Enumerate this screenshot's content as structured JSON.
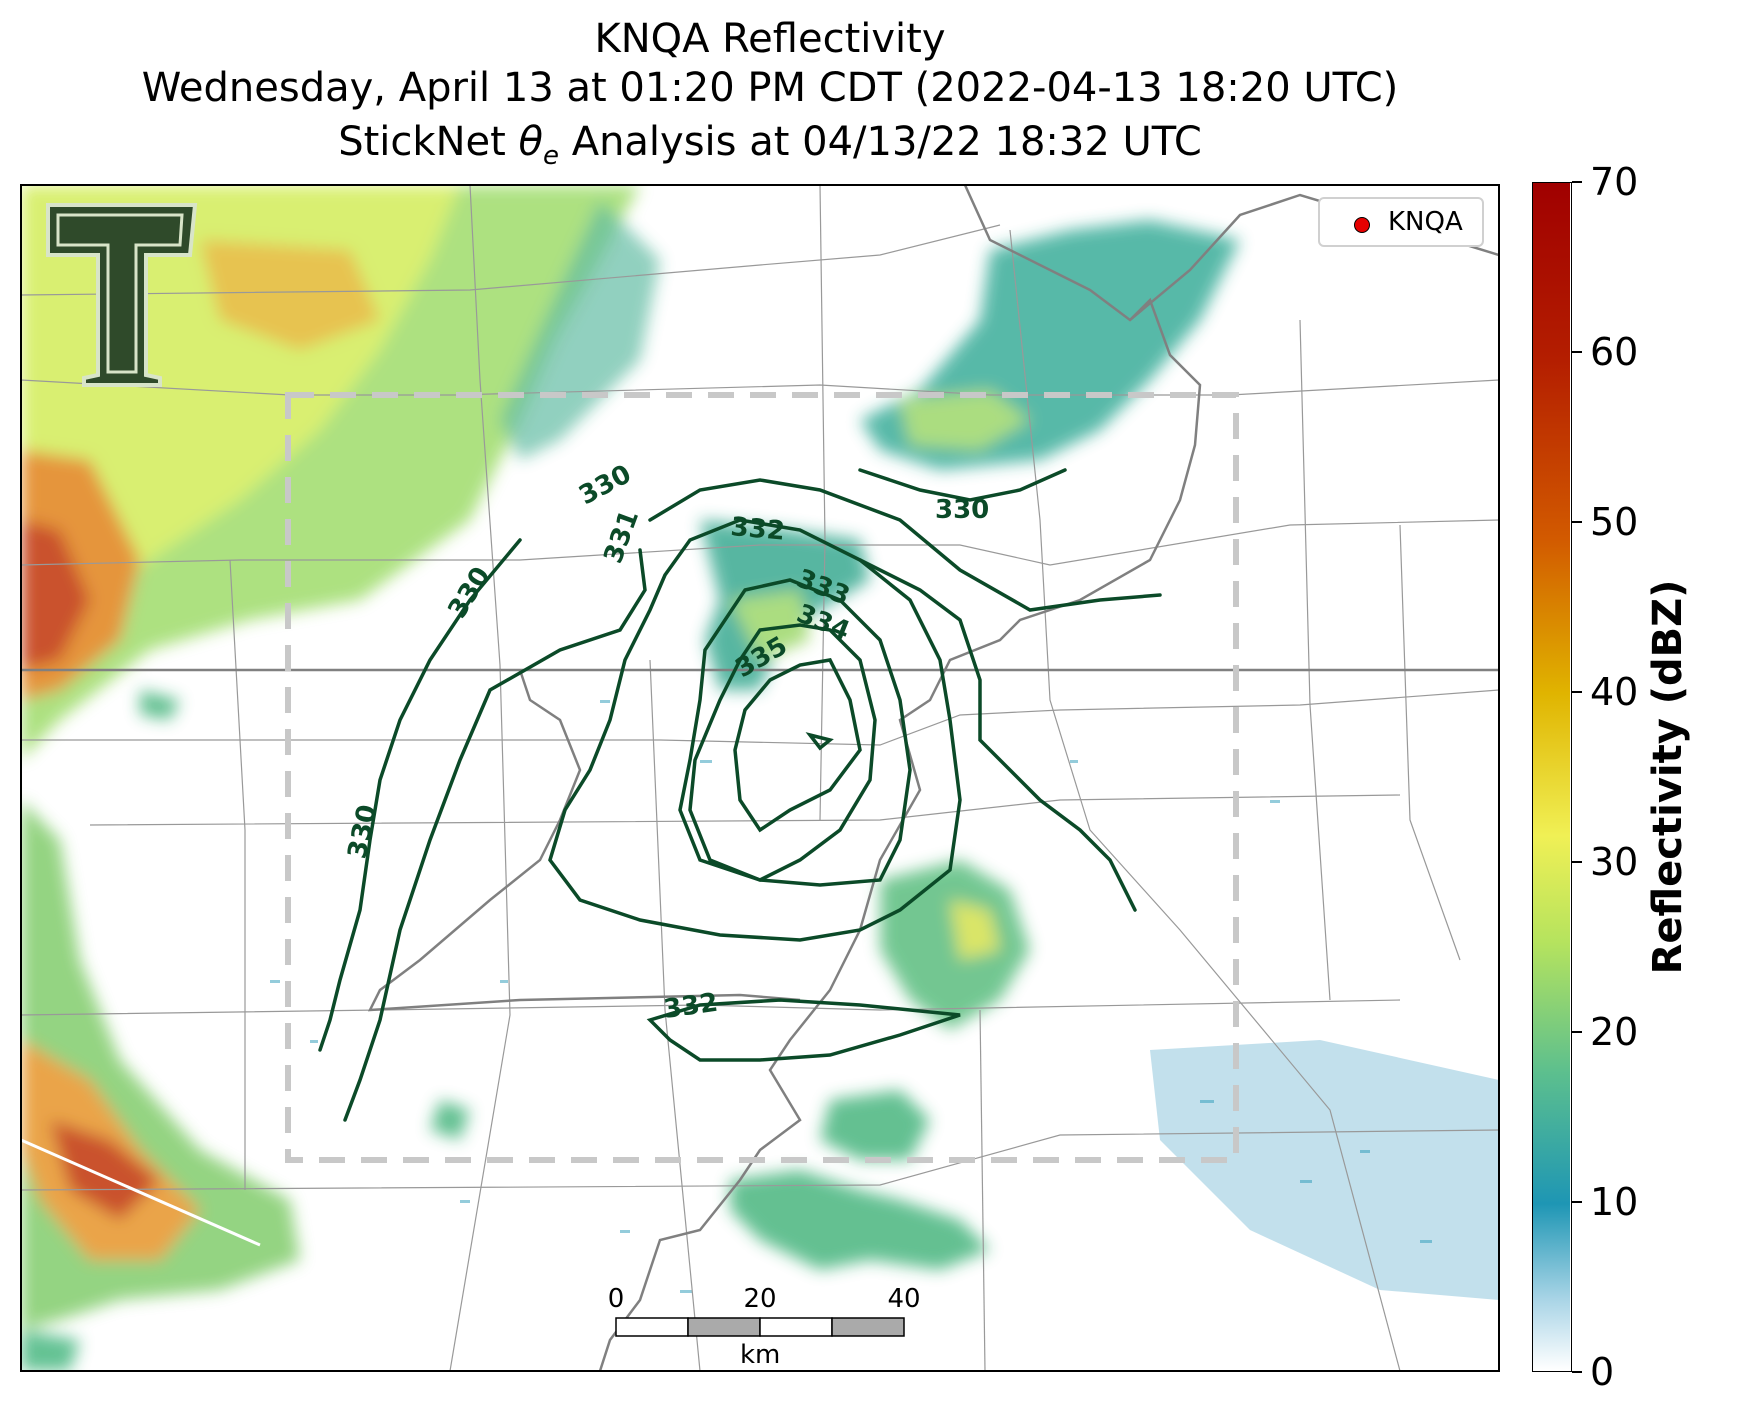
{
  "title": {
    "line1": "KNQA Reflectivity",
    "line2": "Wednesday, April 13 at 01:20 PM CDT (2022-04-13 18:20 UTC)",
    "line3_pre": "StickNet ",
    "line3_sym": "θ",
    "line3_sub": "e",
    "line3_post": " Analysis at 04/13/22 18:32 UTC"
  },
  "legend": {
    "label": "KNQA",
    "marker_color": "#e60000"
  },
  "colorbar": {
    "title": "Reflectivity (dBZ)",
    "ticks": [
      "0",
      "10",
      "20",
      "30",
      "40",
      "50",
      "60",
      "70"
    ],
    "colors": [
      "#ffffff",
      "#1e96b4",
      "#7acd8c",
      "#f0f055",
      "#e0b400",
      "#d25a00",
      "#b41e00",
      "#a00000"
    ]
  },
  "contours": {
    "color": "#0b4a28",
    "labels": [
      "330",
      "330",
      "330",
      "331",
      "332",
      "333",
      "334",
      "335",
      "330",
      "332"
    ]
  },
  "scale_bar": {
    "labels": [
      "0",
      "20",
      "40"
    ],
    "unit": "km"
  },
  "analysis_box": {
    "style": "dashed",
    "color": "#c8c8c8"
  },
  "logo": {
    "letter": "T"
  }
}
